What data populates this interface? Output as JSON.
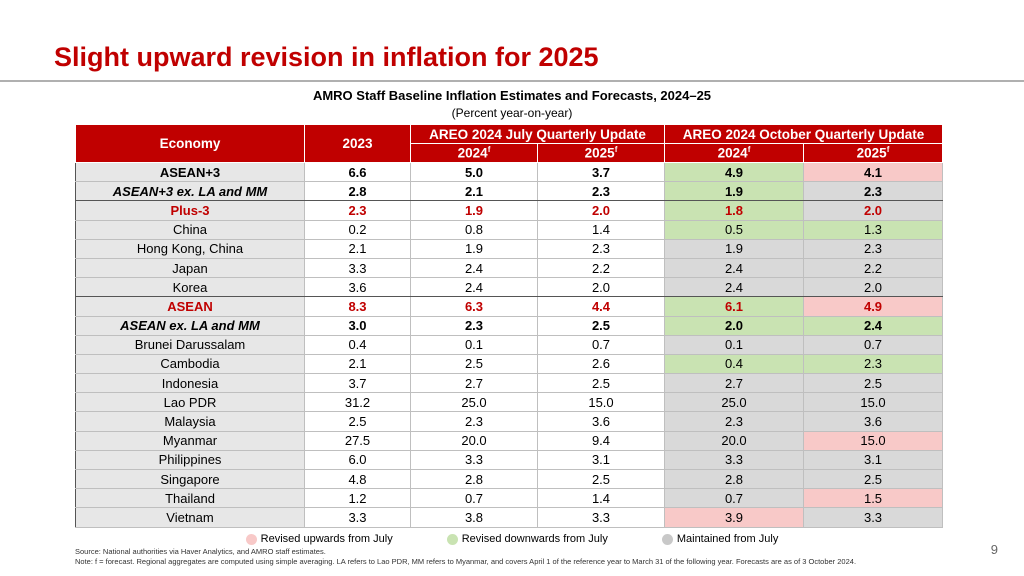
{
  "slide": {
    "title": "Slight upward revision in inflation for 2025",
    "page_number": "9"
  },
  "table": {
    "title": "AMRO Staff Baseline Inflation Estimates and Forecasts, 2024–25",
    "subtitle": "(Percent year-on-year)",
    "headers": {
      "economy": "Economy",
      "year2023": "2023",
      "july_group": "AREO 2024 July Quarterly Update",
      "october_group": "AREO 2024 October Quarterly Update",
      "y2024": "2024",
      "y2025": "2025",
      "forecast_mark": "f"
    },
    "rows": [
      {
        "economy": "ASEAN+3",
        "v2023": "6.6",
        "jul2024": "5.0",
        "jul2025": "3.7",
        "oct2024": "4.9",
        "oct2025": "4.1",
        "s2024": "down",
        "s2025": "up",
        "style": "bold",
        "indent": 0
      },
      {
        "economy": "ASEAN+3 ex. LA and MM",
        "v2023": "2.8",
        "jul2024": "2.1",
        "jul2025": "2.3",
        "oct2024": "1.9",
        "oct2025": "2.3",
        "s2024": "down",
        "s2025": "same",
        "style": "bold-italic",
        "indent": 0
      },
      {
        "economy": "Plus-3",
        "v2023": "2.3",
        "jul2024": "1.9",
        "jul2025": "2.0",
        "oct2024": "1.8",
        "oct2025": "2.0",
        "s2024": "down",
        "s2025": "same",
        "style": "bold-red",
        "indent": 1
      },
      {
        "economy": "China",
        "v2023": "0.2",
        "jul2024": "0.8",
        "jul2025": "1.4",
        "oct2024": "0.5",
        "oct2025": "1.3",
        "s2024": "down",
        "s2025": "down",
        "style": "normal",
        "indent": 2
      },
      {
        "economy": "Hong Kong, China",
        "v2023": "2.1",
        "jul2024": "1.9",
        "jul2025": "2.3",
        "oct2024": "1.9",
        "oct2025": "2.3",
        "s2024": "same",
        "s2025": "same",
        "style": "normal",
        "indent": 2
      },
      {
        "economy": "Japan",
        "v2023": "3.3",
        "jul2024": "2.4",
        "jul2025": "2.2",
        "oct2024": "2.4",
        "oct2025": "2.2",
        "s2024": "same",
        "s2025": "same",
        "style": "normal",
        "indent": 2
      },
      {
        "economy": "Korea",
        "v2023": "3.6",
        "jul2024": "2.4",
        "jul2025": "2.0",
        "oct2024": "2.4",
        "oct2025": "2.0",
        "s2024": "same",
        "s2025": "same",
        "style": "normal",
        "indent": 2
      },
      {
        "economy": "ASEAN",
        "v2023": "8.3",
        "jul2024": "6.3",
        "jul2025": "4.4",
        "oct2024": "6.1",
        "oct2025": "4.9",
        "s2024": "down",
        "s2025": "up",
        "style": "bold-red",
        "indent": 1
      },
      {
        "economy": "ASEAN ex. LA and MM",
        "v2023": "3.0",
        "jul2024": "2.3",
        "jul2025": "2.5",
        "oct2024": "2.0",
        "oct2025": "2.4",
        "s2024": "down",
        "s2025": "down",
        "style": "bold-italic",
        "indent": 1
      },
      {
        "economy": "Brunei Darussalam",
        "v2023": "0.4",
        "jul2024": "0.1",
        "jul2025": "0.7",
        "oct2024": "0.1",
        "oct2025": "0.7",
        "s2024": "same",
        "s2025": "same",
        "style": "normal",
        "indent": 2
      },
      {
        "economy": "Cambodia",
        "v2023": "2.1",
        "jul2024": "2.5",
        "jul2025": "2.6",
        "oct2024": "0.4",
        "oct2025": "2.3",
        "s2024": "down",
        "s2025": "down",
        "style": "normal",
        "indent": 2
      },
      {
        "economy": "Indonesia",
        "v2023": "3.7",
        "jul2024": "2.7",
        "jul2025": "2.5",
        "oct2024": "2.7",
        "oct2025": "2.5",
        "s2024": "same",
        "s2025": "same",
        "style": "normal",
        "indent": 2
      },
      {
        "economy": "Lao PDR",
        "v2023": "31.2",
        "jul2024": "25.0",
        "jul2025": "15.0",
        "oct2024": "25.0",
        "oct2025": "15.0",
        "s2024": "same",
        "s2025": "same",
        "style": "normal",
        "indent": 2
      },
      {
        "economy": "Malaysia",
        "v2023": "2.5",
        "jul2024": "2.3",
        "jul2025": "3.6",
        "oct2024": "2.3",
        "oct2025": "3.6",
        "s2024": "same",
        "s2025": "same",
        "style": "normal",
        "indent": 2
      },
      {
        "economy": "Myanmar",
        "v2023": "27.5",
        "jul2024": "20.0",
        "jul2025": "9.4",
        "oct2024": "20.0",
        "oct2025": "15.0",
        "s2024": "same",
        "s2025": "up",
        "style": "normal",
        "indent": 2
      },
      {
        "economy": "Philippines",
        "v2023": "6.0",
        "jul2024": "3.3",
        "jul2025": "3.1",
        "oct2024": "3.3",
        "oct2025": "3.1",
        "s2024": "same",
        "s2025": "same",
        "style": "normal",
        "indent": 2
      },
      {
        "economy": "Singapore",
        "v2023": "4.8",
        "jul2024": "2.8",
        "jul2025": "2.5",
        "oct2024": "2.8",
        "oct2025": "2.5",
        "s2024": "same",
        "s2025": "same",
        "style": "normal",
        "indent": 2
      },
      {
        "economy": "Thailand",
        "v2023": "1.2",
        "jul2024": "0.7",
        "jul2025": "1.4",
        "oct2024": "0.7",
        "oct2025": "1.5",
        "s2024": "same",
        "s2025": "up",
        "style": "normal",
        "indent": 2
      },
      {
        "economy": "Vietnam",
        "v2023": "3.3",
        "jul2024": "3.8",
        "jul2025": "3.3",
        "oct2024": "3.9",
        "oct2025": "3.3",
        "s2024": "up",
        "s2025": "same",
        "style": "normal",
        "indent": 2
      }
    ]
  },
  "legend": {
    "up": {
      "label": "Revised upwards from July",
      "color": "#f8c9c8"
    },
    "down": {
      "label": "Revised downwards from July",
      "color": "#c9e3b2"
    },
    "same": {
      "label": "Maintained from July",
      "color": "#c8c8c8"
    }
  },
  "notes": {
    "source": "Source: National authorities via Haver Analytics, and AMRO staff estimates.",
    "note": "Note: f = forecast. Regional aggregates are computed using simple averaging. LA refers to Lao PDR, MM refers to Myanmar, and covers April 1 of the reference year to March 31 of the following year. Forecasts are as of 3 October 2024."
  }
}
